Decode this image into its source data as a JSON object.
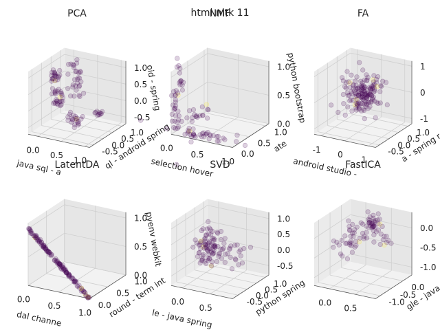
{
  "figure": {
    "title": "html nltk 11",
    "point_color": "#440154",
    "accent_color": "#fde725",
    "pane_colors": [
      "#f2f2f2",
      "#e6e6e6",
      "#ebebeb"
    ],
    "grid_color": "#cfcfcf"
  },
  "chart_data": [
    {
      "type": "scatter",
      "title": "PCA",
      "xlabel": "java sql  -  a",
      "ylabel": "ql  -  android spring",
      "zlabel": "oid  -  spring",
      "x_ticks": [
        "0.0",
        "0.5",
        "1.0"
      ],
      "y_ticks": [
        "-0.5",
        "0.0",
        "0.5",
        "1.0"
      ],
      "z_ticks": [
        "-0.5",
        "0.0",
        "0.5",
        "1.0"
      ],
      "xlim": [
        -0.2,
        1.1
      ],
      "ylim": [
        -0.7,
        1.2
      ],
      "zlim": [
        -0.7,
        1.2
      ],
      "clusters": [
        {
          "c": [
            0.0,
            0.2,
            0.8
          ],
          "s": [
            0.05,
            0.05,
            0.1
          ],
          "n": 20
        },
        {
          "c": [
            0.1,
            0.1,
            0.2
          ],
          "s": [
            0.06,
            0.06,
            0.15
          ],
          "n": 28
        },
        {
          "c": [
            0.4,
            0.3,
            0.5
          ],
          "s": [
            0.1,
            0.1,
            0.2
          ],
          "n": 20
        },
        {
          "c": [
            0.5,
            0.0,
            -0.3
          ],
          "s": [
            0.08,
            0.08,
            0.1
          ],
          "n": 22
        },
        {
          "c": [
            0.8,
            0.5,
            -0.2
          ],
          "s": [
            0.05,
            0.05,
            0.06
          ],
          "n": 10
        },
        {
          "c": [
            0.3,
            0.6,
            1.0
          ],
          "s": [
            0.15,
            0.1,
            0.1
          ],
          "n": 12
        }
      ]
    },
    {
      "type": "scatter",
      "title": "NMF",
      "xlabel": "selection hover",
      "ylabel": "ate",
      "zlabel": "python bootstrap",
      "x_ticks": [
        "0.0",
        "0.5",
        "1.0"
      ],
      "y_ticks": [
        "0.0",
        "0.5",
        "1.0"
      ],
      "z_ticks": [
        "0.0",
        "0.5",
        "1.0"
      ],
      "xlim": [
        0,
        1
      ],
      "ylim": [
        0,
        1.1
      ],
      "zlim": [
        0,
        1.1
      ],
      "clusters": [
        {
          "c": [
            0.05,
            0.05,
            0.5
          ],
          "s": [
            0.03,
            0.03,
            0.3
          ],
          "n": 28
        },
        {
          "c": [
            0.5,
            0.1,
            0.05
          ],
          "s": [
            0.3,
            0.04,
            0.04
          ],
          "n": 40
        },
        {
          "c": [
            0.1,
            0.7,
            0.1
          ],
          "s": [
            0.06,
            0.2,
            0.05
          ],
          "n": 18
        },
        {
          "c": [
            0.1,
            0.1,
            0.9
          ],
          "s": [
            0.03,
            0.03,
            0.1
          ],
          "n": 10
        }
      ]
    },
    {
      "type": "scatter",
      "title": "FA",
      "xlabel": "android studio  -",
      "ylabel": "a  -  spring re",
      "zlabel": "",
      "x_ticks": [
        "-1",
        "0",
        "1"
      ],
      "y_ticks": [
        "-0.5",
        "0.0",
        "0.5",
        "1.0"
      ],
      "z_ticks": [
        "-1",
        "0",
        "1"
      ],
      "xlim": [
        -1.3,
        1.3
      ],
      "ylim": [
        -0.7,
        1.2
      ],
      "zlim": [
        -1.2,
        1.2
      ],
      "clusters": [
        {
          "c": [
            0.0,
            0.2,
            0.2
          ],
          "s": [
            0.35,
            0.25,
            0.35
          ],
          "n": 160
        }
      ]
    },
    {
      "type": "scatter",
      "title": "LatentDA",
      "xlabel": "dal channe",
      "ylabel": "round  -  term int",
      "zlabel": "pyenv webkit",
      "x_ticks": [
        "0.0",
        "0.5",
        "1.0"
      ],
      "y_ticks": [
        "0.0",
        "0.5",
        "1.0"
      ],
      "z_ticks": [
        "0.0",
        "0.5",
        "1.0"
      ],
      "xlim": [
        0,
        1
      ],
      "ylim": [
        0,
        1
      ],
      "zlim": [
        0,
        1.1
      ],
      "line_cluster": {
        "from": [
          0.0,
          0.0,
          1.0
        ],
        "to": [
          1.0,
          0.0,
          0.0
        ],
        "n": 130
      }
    },
    {
      "type": "scatter",
      "title": "SVD",
      "xlabel": "le  -  java spring",
      "ylabel": "python spring",
      "zlabel": "",
      "x_ticks": [
        "0.0",
        "0.5"
      ],
      "y_ticks": [
        "-0.5",
        "0.0",
        "0.5",
        "1.0"
      ],
      "z_ticks": [
        "-0.5",
        "0.0",
        "0.5",
        "1.0"
      ],
      "xlim": [
        -0.2,
        0.9
      ],
      "ylim": [
        -0.8,
        1.2
      ],
      "zlim": [
        -0.8,
        1.2
      ],
      "clusters": [
        {
          "c": [
            0.2,
            0.0,
            0.3
          ],
          "s": [
            0.1,
            0.25,
            0.3
          ],
          "n": 90
        },
        {
          "c": [
            0.5,
            0.5,
            0.0
          ],
          "s": [
            0.1,
            0.2,
            0.2
          ],
          "n": 20
        }
      ]
    },
    {
      "type": "scatter",
      "title": "FastICA",
      "xlabel": "",
      "ylabel": "gle  -  java",
      "zlabel": "",
      "x_ticks": [
        "0.0",
        "0.5"
      ],
      "y_ticks": [
        "-1.0",
        "-0.5",
        "0.0"
      ],
      "z_ticks": [
        "-1.0",
        "-0.5",
        "0.0"
      ],
      "xlim": [
        -0.3,
        0.9
      ],
      "ylim": [
        -1.2,
        0.4
      ],
      "zlim": [
        -1.2,
        0.4
      ],
      "clusters": [
        {
          "c": [
            0.3,
            0.0,
            0.1
          ],
          "s": [
            0.08,
            0.1,
            0.12
          ],
          "n": 40
        },
        {
          "c": [
            0.0,
            -0.3,
            -0.3
          ],
          "s": [
            0.1,
            0.15,
            0.25
          ],
          "n": 35
        },
        {
          "c": [
            0.6,
            -0.1,
            -0.2
          ],
          "s": [
            0.05,
            0.1,
            0.1
          ],
          "n": 10
        }
      ]
    }
  ]
}
